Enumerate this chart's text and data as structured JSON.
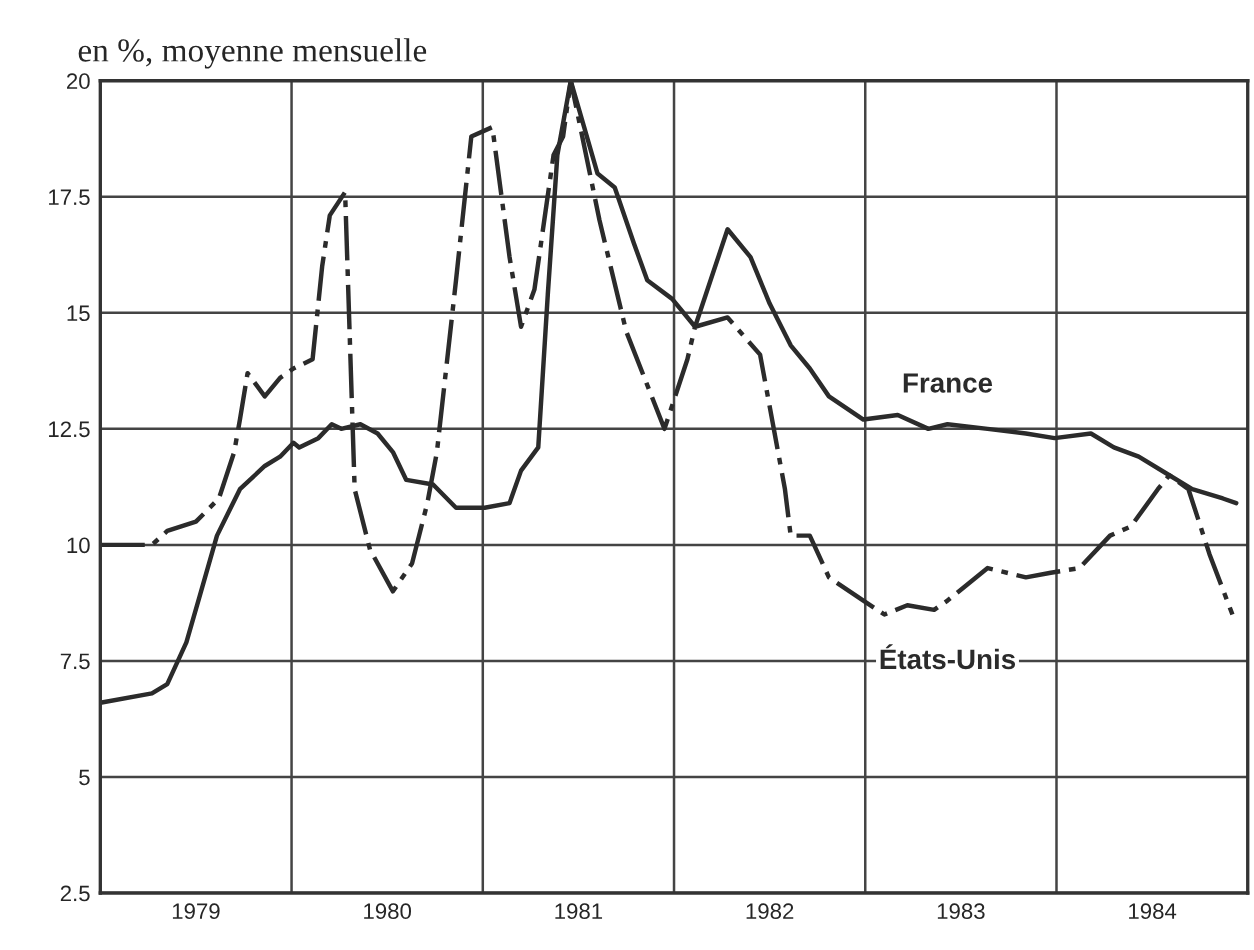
{
  "chart_data": {
    "type": "line",
    "ylabel": "en %, moyenne mensuelle",
    "xlim": [
      1979,
      1985
    ],
    "ylim": [
      2.5,
      20
    ],
    "xticks": [
      {
        "value": 1979.5,
        "label": "1979"
      },
      {
        "value": 1980,
        "label": null
      },
      {
        "value": 1980.5,
        "label": "1980"
      },
      {
        "value": 1981,
        "label": null
      },
      {
        "value": 1981.5,
        "label": "1981"
      },
      {
        "value": 1982,
        "label": null
      },
      {
        "value": 1982.5,
        "label": "1982"
      },
      {
        "value": 1983,
        "label": null
      },
      {
        "value": 1983.5,
        "label": "1983"
      },
      {
        "value": 1984,
        "label": null
      },
      {
        "value": 1984.5,
        "label": "1984"
      }
    ],
    "yticks": [
      2.5,
      5,
      7.5,
      10,
      12.5,
      15,
      17.5,
      20
    ],
    "grid": true,
    "legend": false,
    "marker": "none",
    "series": [
      {
        "name": "France",
        "color": "#2b2b2b",
        "line_style": "solid",
        "x": [
          1979.0,
          1979.27,
          1979.35,
          1979.45,
          1979.52,
          1979.61,
          1979.73,
          1979.86,
          1979.94,
          1980.01,
          1980.04,
          1980.14,
          1980.21,
          1980.26,
          1980.36,
          1980.45,
          1980.53,
          1980.6,
          1980.74,
          1980.86,
          1981.01,
          1981.14,
          1981.2,
          1981.29,
          1981.34,
          1981.39,
          1981.46,
          1981.53,
          1981.6,
          1981.69,
          1981.79,
          1981.86,
          1981.99,
          1982.11,
          1982.28,
          1982.4,
          1982.5,
          1982.61,
          1982.71,
          1982.81,
          1982.99,
          1983.17,
          1983.33,
          1983.43,
          1983.64,
          1983.84,
          1983.99,
          1984.18,
          1984.3,
          1984.43,
          1984.59,
          1984.71,
          1984.87,
          1984.94
        ],
        "values": [
          6.6,
          6.8,
          7.0,
          7.9,
          8.9,
          10.2,
          11.2,
          11.7,
          11.9,
          12.2,
          12.1,
          12.3,
          12.6,
          12.5,
          12.6,
          12.4,
          12.0,
          11.4,
          11.3,
          10.8,
          10.8,
          10.9,
          11.6,
          12.1,
          15.4,
          18.4,
          20.0,
          19.0,
          18.0,
          17.7,
          16.5,
          15.7,
          15.3,
          14.7,
          16.8,
          16.2,
          15.2,
          14.3,
          13.8,
          13.2,
          12.7,
          12.8,
          12.5,
          12.6,
          12.5,
          12.4,
          12.3,
          12.4,
          12.1,
          11.9,
          11.5,
          11.2,
          11.0,
          10.9
        ]
      },
      {
        "name": "États-Unis",
        "color": "#2b2b2b",
        "line_style": "dashed",
        "x": [
          1979.0,
          1979.27,
          1979.35,
          1979.5,
          1979.62,
          1979.7,
          1979.73,
          1979.77,
          1979.86,
          1979.94,
          1980.01,
          1980.11,
          1980.16,
          1980.2,
          1980.28,
          1980.33,
          1980.41,
          1980.53,
          1980.63,
          1980.71,
          1980.76,
          1980.86,
          1980.94,
          1981.05,
          1981.14,
          1981.2,
          1981.27,
          1981.37,
          1981.42,
          1981.46,
          1981.53,
          1981.61,
          1981.75,
          1981.95,
          1982.07,
          1982.11,
          1982.28,
          1982.45,
          1982.58,
          1982.61,
          1982.71,
          1982.81,
          1982.99,
          1983.1,
          1983.22,
          1983.36,
          1983.43,
          1983.64,
          1983.84,
          1983.97,
          1984.12,
          1984.28,
          1984.39,
          1984.53,
          1984.59,
          1984.69,
          1984.8,
          1984.92
        ],
        "values": [
          10.0,
          10.0,
          10.3,
          10.5,
          11.0,
          12.0,
          12.7,
          13.7,
          13.2,
          13.6,
          13.8,
          14.0,
          16.0,
          17.1,
          17.6,
          11.2,
          9.9,
          9.0,
          9.6,
          10.9,
          12.0,
          15.7,
          18.8,
          19.0,
          16.2,
          14.7,
          15.5,
          18.4,
          18.8,
          20.0,
          18.6,
          17.0,
          14.6,
          12.5,
          14.0,
          14.7,
          14.9,
          14.1,
          11.2,
          10.2,
          10.2,
          9.3,
          8.8,
          8.5,
          8.7,
          8.6,
          8.8,
          9.5,
          9.3,
          9.4,
          9.5,
          10.2,
          10.4,
          11.2,
          11.5,
          11.2,
          9.8,
          8.5
        ]
      }
    ]
  }
}
